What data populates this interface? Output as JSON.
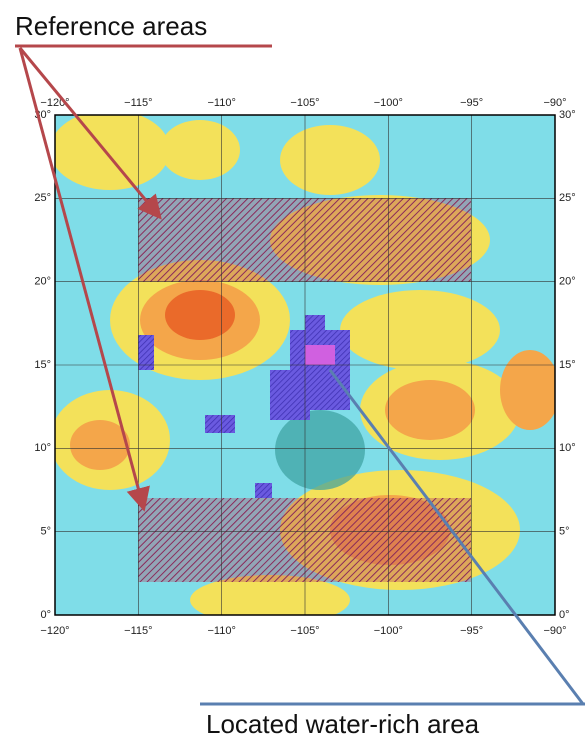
{
  "annotations": {
    "reference": "Reference areas",
    "water": "Located water-rich area"
  },
  "map": {
    "lon_labels": [
      "−120°",
      "−115°",
      "−110°",
      "−105°",
      "−100°",
      "−95°",
      "−90°"
    ],
    "lat_labels": [
      "30°",
      "25°",
      "20°",
      "15°",
      "10°",
      "5°",
      "0°"
    ]
  }
}
